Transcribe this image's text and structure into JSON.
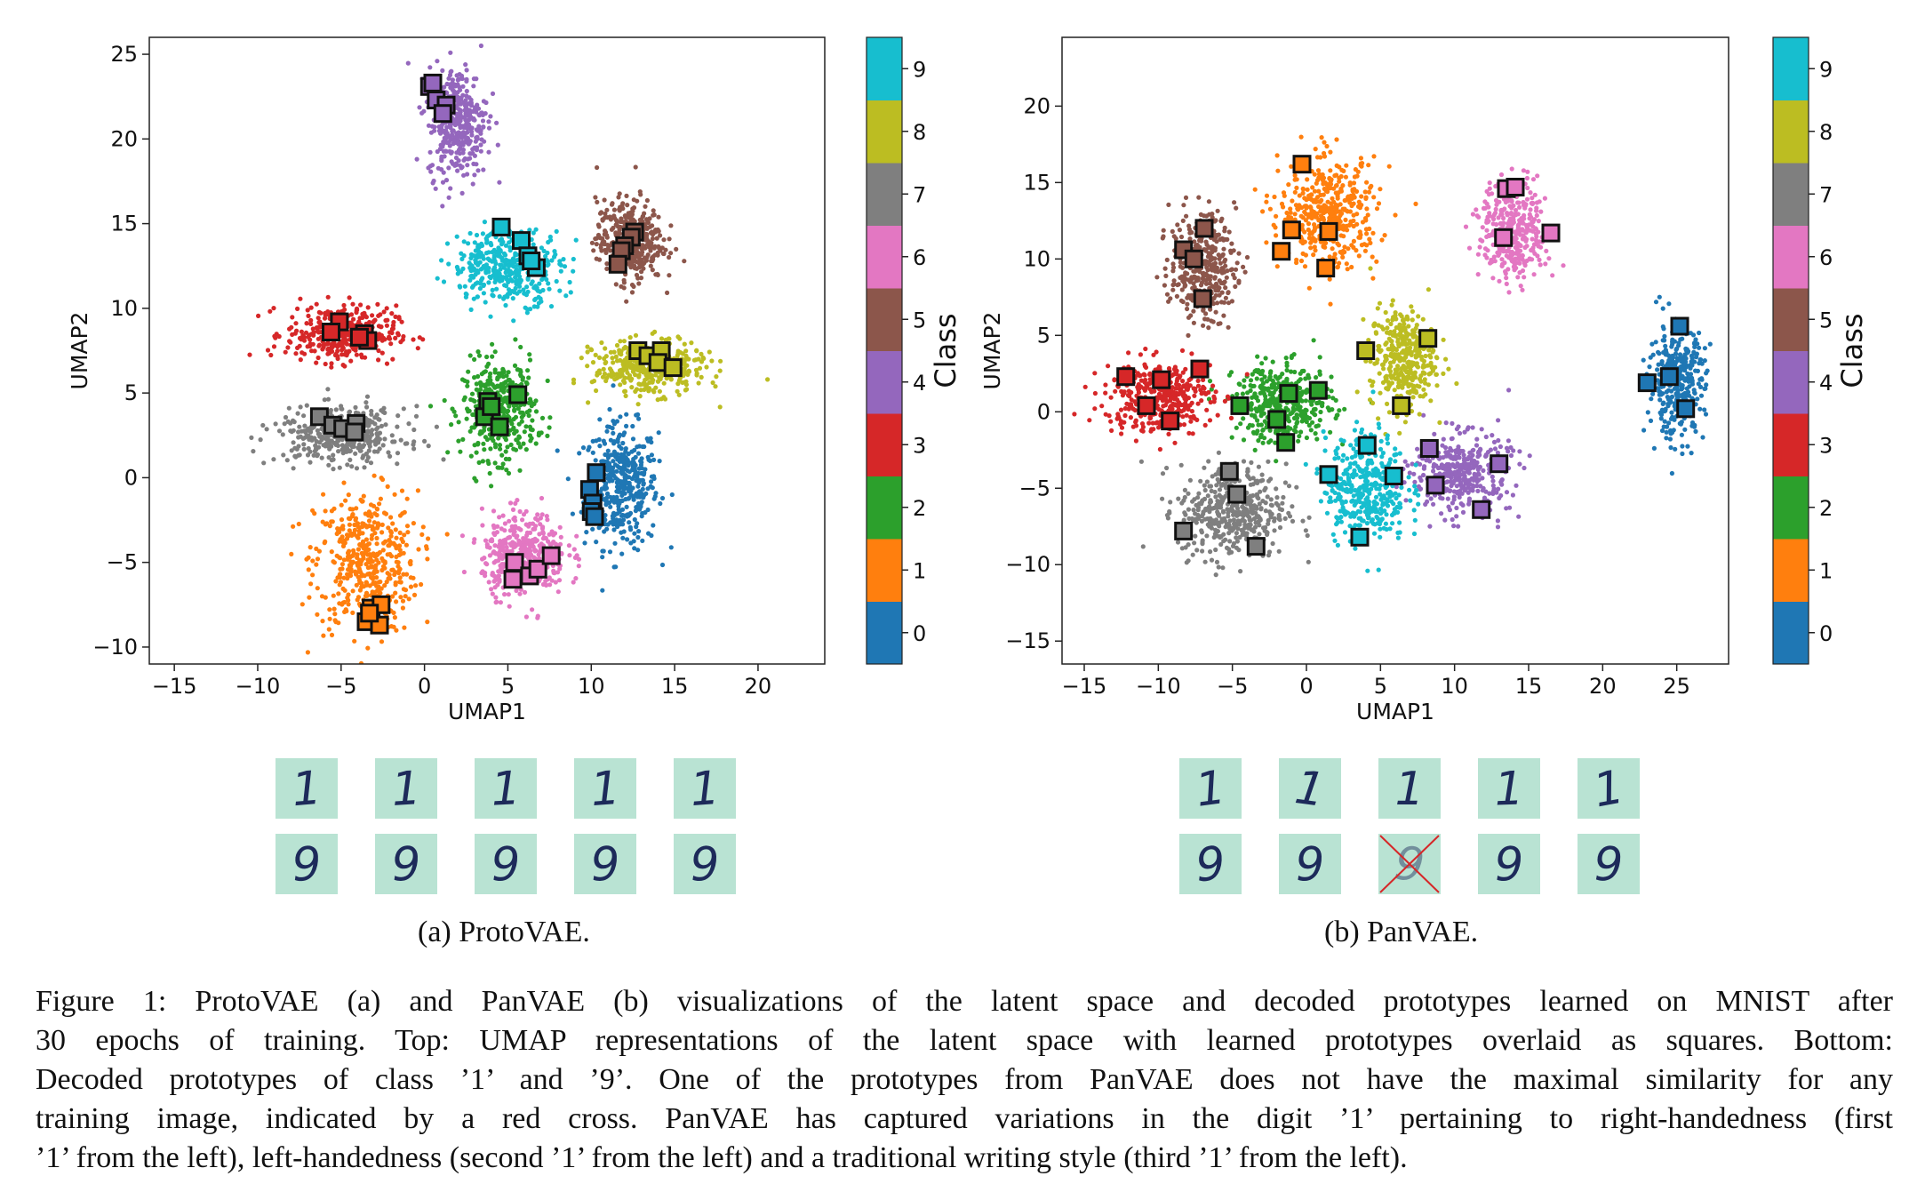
{
  "chart_data": [
    {
      "type": "scatter",
      "name": "ProtoVAE latent UMAP",
      "xlabel": "UMAP1",
      "ylabel": "UMAP2",
      "xlim": [
        -16.5,
        24
      ],
      "ylim": [
        -11,
        26
      ],
      "xticks": [
        -15,
        -10,
        -5,
        0,
        5,
        10,
        15,
        20
      ],
      "yticks": [
        -10,
        -5,
        0,
        5,
        10,
        15,
        20,
        25
      ],
      "xtick_labels": [
        "−15",
        "−10",
        "−5",
        "0",
        "5",
        "10",
        "15",
        "20"
      ],
      "ytick_labels": [
        "−10",
        "−5",
        "0",
        "5",
        "10",
        "15",
        "20",
        "25"
      ],
      "colorbar_label": "Class",
      "colorbar_ticks": [
        "0",
        "1",
        "2",
        "3",
        "4",
        "5",
        "6",
        "7",
        "8",
        "9"
      ],
      "class_colors": [
        "#1f77b4",
        "#ff7f0e",
        "#2ca02c",
        "#d62728",
        "#9467bd",
        "#8c564b",
        "#e377c2",
        "#7f7f7f",
        "#bcbd22",
        "#17becf"
      ],
      "clusters": [
        {
          "class": 0,
          "center": [
            11.8,
            -0.5
          ],
          "spread": [
            2.0,
            3.3
          ],
          "count": 420
        },
        {
          "class": 1,
          "center": [
            -3.5,
            -5.0
          ],
          "spread": [
            2.8,
            3.8
          ],
          "count": 460
        },
        {
          "class": 2,
          "center": [
            4.5,
            4.0
          ],
          "spread": [
            2.0,
            2.6
          ],
          "count": 420
        },
        {
          "class": 3,
          "center": [
            -5.0,
            8.5
          ],
          "spread": [
            3.0,
            1.5
          ],
          "count": 380
        },
        {
          "class": 4,
          "center": [
            2.0,
            21.0
          ],
          "spread": [
            1.6,
            3.0
          ],
          "count": 380
        },
        {
          "class": 5,
          "center": [
            12.3,
            14.0
          ],
          "spread": [
            1.8,
            2.2
          ],
          "count": 380
        },
        {
          "class": 6,
          "center": [
            6.0,
            -4.5
          ],
          "spread": [
            2.3,
            2.2
          ],
          "count": 400
        },
        {
          "class": 7,
          "center": [
            -5.0,
            2.5
          ],
          "spread": [
            3.5,
            1.5
          ],
          "count": 380
        },
        {
          "class": 8,
          "center": [
            13.5,
            6.5
          ],
          "spread": [
            3.0,
            1.4
          ],
          "count": 400
        },
        {
          "class": 9,
          "center": [
            5.0,
            12.5
          ],
          "spread": [
            3.0,
            2.0
          ],
          "count": 380
        }
      ],
      "prototypes": [
        {
          "class": 0,
          "points": [
            [
              10.3,
              0.3
            ],
            [
              9.9,
              -0.7
            ],
            [
              10.1,
              -1.5
            ],
            [
              10.0,
              -2.0
            ],
            [
              10.2,
              -2.3
            ]
          ]
        },
        {
          "class": 1,
          "points": [
            [
              -3.2,
              -7.7
            ],
            [
              -2.6,
              -7.5
            ],
            [
              -3.5,
              -8.5
            ],
            [
              -2.7,
              -8.7
            ],
            [
              -3.3,
              -8.0
            ]
          ]
        },
        {
          "class": 2,
          "points": [
            [
              3.8,
              4.5
            ],
            [
              5.6,
              4.9
            ],
            [
              3.6,
              3.6
            ],
            [
              4.5,
              3.0
            ],
            [
              4.0,
              4.2
            ]
          ]
        },
        {
          "class": 3,
          "points": [
            [
              -5.1,
              9.2
            ],
            [
              -5.6,
              8.6
            ],
            [
              -3.6,
              8.5
            ],
            [
              -3.4,
              8.1
            ],
            [
              -3.9,
              8.3
            ]
          ]
        },
        {
          "class": 4,
          "points": [
            [
              0.3,
              23.1
            ],
            [
              0.7,
              22.3
            ],
            [
              1.3,
              22.0
            ],
            [
              1.1,
              21.5
            ],
            [
              0.5,
              23.3
            ]
          ]
        },
        {
          "class": 5,
          "points": [
            [
              12.6,
              14.5
            ],
            [
              12.4,
              14.2
            ],
            [
              12.0,
              13.7
            ],
            [
              11.8,
              13.4
            ],
            [
              11.6,
              12.6
            ]
          ]
        },
        {
          "class": 6,
          "points": [
            [
              5.4,
              -5.0
            ],
            [
              6.3,
              -5.8
            ],
            [
              6.8,
              -5.4
            ],
            [
              7.6,
              -4.6
            ],
            [
              5.3,
              -6.0
            ]
          ]
        },
        {
          "class": 7,
          "points": [
            [
              -6.3,
              3.6
            ],
            [
              -5.5,
              3.1
            ],
            [
              -4.9,
              2.9
            ],
            [
              -4.1,
              3.2
            ],
            [
              -4.2,
              2.7
            ]
          ]
        },
        {
          "class": 8,
          "points": [
            [
              12.8,
              7.5
            ],
            [
              13.4,
              7.2
            ],
            [
              14.2,
              7.5
            ],
            [
              14.0,
              6.8
            ],
            [
              14.9,
              6.5
            ]
          ]
        },
        {
          "class": 9,
          "points": [
            [
              4.6,
              14.8
            ],
            [
              5.8,
              14.0
            ],
            [
              6.2,
              13.1
            ],
            [
              6.7,
              12.4
            ],
            [
              6.4,
              12.8
            ]
          ]
        }
      ]
    },
    {
      "type": "scatter",
      "name": "PanVAE latent UMAP",
      "xlabel": "UMAP1",
      "ylabel": "UMAP2",
      "xlim": [
        -16.5,
        28.5
      ],
      "ylim": [
        -16.5,
        24.5
      ],
      "xticks": [
        -15,
        -10,
        -5,
        0,
        5,
        10,
        15,
        20,
        25
      ],
      "yticks": [
        -15,
        -10,
        -5,
        0,
        5,
        10,
        15,
        20
      ],
      "xtick_labels": [
        "−15",
        "−10",
        "−5",
        "0",
        "5",
        "10",
        "15",
        "20",
        "25"
      ],
      "ytick_labels": [
        "−15",
        "−10",
        "−5",
        "0",
        "5",
        "10",
        "15",
        "20"
      ],
      "colorbar_label": "Class",
      "colorbar_ticks": [
        "0",
        "1",
        "2",
        "3",
        "4",
        "5",
        "6",
        "7",
        "8",
        "9"
      ],
      "class_colors": [
        "#1f77b4",
        "#ff7f0e",
        "#2ca02c",
        "#d62728",
        "#9467bd",
        "#8c564b",
        "#e377c2",
        "#7f7f7f",
        "#bcbd22",
        "#17becf"
      ],
      "clusters": [
        {
          "class": 0,
          "center": [
            25.0,
            2.0
          ],
          "spread": [
            1.7,
            3.3
          ],
          "count": 360
        },
        {
          "class": 1,
          "center": [
            1.5,
            13.0
          ],
          "spread": [
            3.0,
            3.2
          ],
          "count": 440
        },
        {
          "class": 2,
          "center": [
            -1.5,
            0.5
          ],
          "spread": [
            3.0,
            2.3
          ],
          "count": 400
        },
        {
          "class": 3,
          "center": [
            -10.0,
            1.0
          ],
          "spread": [
            3.3,
            2.2
          ],
          "count": 400
        },
        {
          "class": 4,
          "center": [
            10.5,
            -4.0
          ],
          "spread": [
            3.0,
            2.3
          ],
          "count": 380
        },
        {
          "class": 5,
          "center": [
            -7.0,
            9.5
          ],
          "spread": [
            2.0,
            3.2
          ],
          "count": 360
        },
        {
          "class": 6,
          "center": [
            14.0,
            11.8
          ],
          "spread": [
            2.0,
            3.0
          ],
          "count": 360
        },
        {
          "class": 7,
          "center": [
            -5.0,
            -6.5
          ],
          "spread": [
            3.3,
            2.8
          ],
          "count": 440
        },
        {
          "class": 8,
          "center": [
            6.5,
            3.5
          ],
          "spread": [
            2.0,
            3.0
          ],
          "count": 360
        },
        {
          "class": 9,
          "center": [
            4.0,
            -5.0
          ],
          "spread": [
            2.5,
            3.2
          ],
          "count": 400
        }
      ],
      "prototypes": [
        {
          "class": 0,
          "points": [
            [
              25.2,
              5.6
            ],
            [
              24.5,
              2.3
            ],
            [
              23.0,
              1.9
            ],
            [
              25.6,
              0.2
            ]
          ]
        },
        {
          "class": 1,
          "points": [
            [
              -0.3,
              16.2
            ],
            [
              -1.0,
              11.9
            ],
            [
              1.5,
              11.8
            ],
            [
              -1.7,
              10.5
            ],
            [
              1.3,
              9.4
            ]
          ]
        },
        {
          "class": 2,
          "points": [
            [
              -4.5,
              0.4
            ],
            [
              -1.2,
              1.2
            ],
            [
              0.8,
              1.4
            ],
            [
              -2.0,
              -0.5
            ],
            [
              -1.4,
              -2.0
            ]
          ]
        },
        {
          "class": 3,
          "points": [
            [
              -12.2,
              2.3
            ],
            [
              -9.8,
              2.1
            ],
            [
              -7.2,
              2.8
            ],
            [
              -10.8,
              0.4
            ],
            [
              -9.2,
              -0.6
            ]
          ]
        },
        {
          "class": 4,
          "points": [
            [
              8.3,
              -2.4
            ],
            [
              13.0,
              -3.4
            ],
            [
              8.7,
              -4.8
            ],
            [
              11.8,
              -6.4
            ]
          ]
        },
        {
          "class": 5,
          "points": [
            [
              -6.9,
              12.0
            ],
            [
              -8.3,
              10.6
            ],
            [
              -7.6,
              10.0
            ],
            [
              -7.0,
              7.4
            ]
          ]
        },
        {
          "class": 6,
          "points": [
            [
              13.5,
              14.6
            ],
            [
              14.1,
              14.7
            ],
            [
              13.3,
              11.4
            ],
            [
              16.5,
              11.7
            ]
          ]
        },
        {
          "class": 7,
          "points": [
            [
              -5.2,
              -3.9
            ],
            [
              -4.7,
              -5.4
            ],
            [
              -8.3,
              -7.8
            ],
            [
              -3.4,
              -8.8
            ]
          ]
        },
        {
          "class": 8,
          "points": [
            [
              4.0,
              4.0
            ],
            [
              8.2,
              4.8
            ],
            [
              6.4,
              0.4
            ]
          ]
        },
        {
          "class": 9,
          "points": [
            [
              4.1,
              -2.2
            ],
            [
              1.5,
              -4.1
            ],
            [
              5.9,
              -4.2
            ],
            [
              3.6,
              -8.2
            ]
          ]
        }
      ]
    }
  ],
  "panels": [
    {
      "label": "(a) ProtoVAE.",
      "decoded_rows": [
        {
          "digit": "1",
          "tiles": [
            "1",
            "1",
            "1",
            "1",
            "1"
          ],
          "crossed": [
            false,
            false,
            false,
            false,
            false
          ]
        },
        {
          "digit": "9",
          "tiles": [
            "9",
            "9",
            "9",
            "9",
            "9"
          ],
          "crossed": [
            false,
            false,
            false,
            false,
            false
          ]
        }
      ]
    },
    {
      "label": "(b) PanVAE.",
      "decoded_rows": [
        {
          "digit": "1",
          "tiles": [
            "1",
            "1",
            "1",
            "1",
            "1"
          ],
          "crossed": [
            false,
            false,
            false,
            false,
            false
          ]
        },
        {
          "digit": "9",
          "tiles": [
            "9",
            "9",
            "9",
            "9",
            "9"
          ],
          "crossed": [
            false,
            false,
            true,
            false,
            false
          ]
        }
      ]
    }
  ],
  "caption": {
    "lines": [
      "Figure 1: ProtoVAE (a) and PanVAE (b) visualizations of the latent space and decoded prototypes learned on MNIST after",
      "30 epochs of training. Top: UMAP representations of the latent space with learned prototypes overlaid as squares. Bottom:",
      "Decoded prototypes of class ’1’ and ’9’. One of the prototypes from PanVAE does not have the maximal similarity for any",
      "training image, indicated by a red cross. PanVAE has captured variations in the digit ’1’ pertaining to right-handedness (first",
      "’1’ from the left), left-handedness (second ’1’ from the left) and a traditional writing style (third ’1’ from the left)."
    ]
  }
}
